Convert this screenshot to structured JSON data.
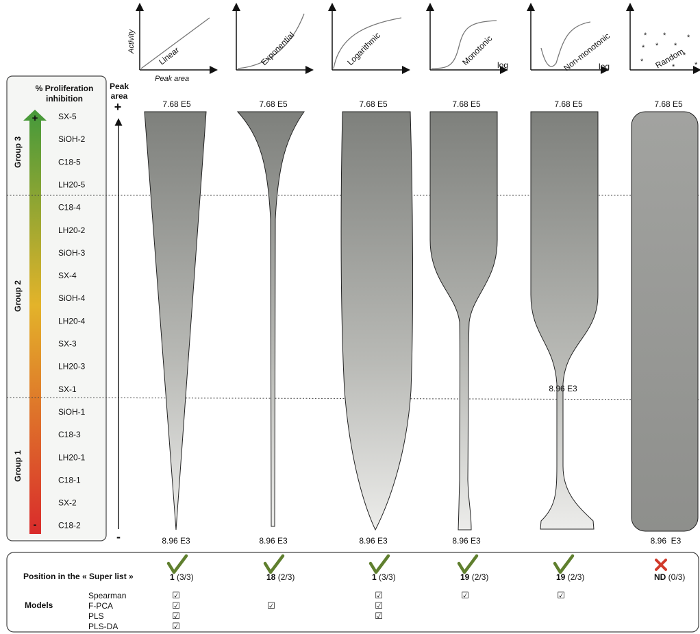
{
  "curve_types": [
    {
      "id": "linear",
      "label": "Linear",
      "x_axis_label": "Peak area",
      "y_axis_label": "Activity",
      "scale_label": ""
    },
    {
      "id": "exponential",
      "label": "Exponential",
      "x_axis_label": "",
      "y_axis_label": "",
      "scale_label": ""
    },
    {
      "id": "logarithmic",
      "label": "Logarithmic",
      "x_axis_label": "",
      "y_axis_label": "",
      "scale_label": ""
    },
    {
      "id": "monotonic",
      "label": "Monotonic",
      "x_axis_label": "",
      "y_axis_label": "",
      "scale_label": "log"
    },
    {
      "id": "non-monotonic",
      "label": "Non-monotonic",
      "x_axis_label": "",
      "y_axis_label": "",
      "scale_label": "log"
    },
    {
      "id": "random",
      "label": "Random",
      "x_axis_label": "",
      "y_axis_label": "",
      "scale_label": ""
    }
  ],
  "left_panel": {
    "title_line1": "% Proliferation",
    "title_line2": "inhibition",
    "plus_sign": "+",
    "minus_sign": "-",
    "gradient_colors": [
      "#4a9a3a",
      "#e3b32a",
      "#d92b2b"
    ],
    "groups": [
      "Group 3",
      "Group 2",
      "Group 1"
    ],
    "samples": [
      "SX-5",
      "SiOH-2",
      "C18-5",
      "LH20-5",
      "C18-4",
      "LH20-2",
      "SiOH-3",
      "SX-4",
      "SiOH-4",
      "LH20-4",
      "SX-3",
      "LH20-3",
      "SX-1",
      "SiOH-1",
      "C18-3",
      "LH20-1",
      "C18-1",
      "SX-2",
      "C18-2"
    ]
  },
  "peak_axis": {
    "title_line1": "Peak",
    "title_line2": "area",
    "plus": "+",
    "minus": "-"
  },
  "shapes": [
    {
      "id": "linear",
      "top_label": "7.68 E5",
      "bottom_label": "8.96 E3",
      "mid_label": ""
    },
    {
      "id": "exponential",
      "top_label": "7.68 E5",
      "bottom_label": "8.96 E3",
      "mid_label": ""
    },
    {
      "id": "logarithmic",
      "top_label": "7.68 E5",
      "bottom_label": "8.96 E3",
      "mid_label": ""
    },
    {
      "id": "monotonic",
      "top_label": "7.68 E5",
      "bottom_label": "8.96 E3",
      "mid_label": ""
    },
    {
      "id": "non-monotonic",
      "top_label": "7.68 E5",
      "bottom_label": "",
      "mid_label": "8.96 E3"
    },
    {
      "id": "random",
      "top_label": "7.68 E5",
      "bottom_label": "8.96  E3",
      "mid_label": ""
    }
  ],
  "bottom_panel": {
    "position_label": "Position in the « Super list »",
    "models_label": "Models",
    "check_mark": "☑",
    "model_names": [
      "Spearman",
      "F-PCA",
      "PLS",
      "PLS-DA"
    ],
    "results": [
      {
        "id": "linear",
        "status": "check",
        "rank": "1",
        "ratio": "(3/3)",
        "models": [
          true,
          true,
          true,
          true
        ]
      },
      {
        "id": "exponential",
        "status": "check",
        "rank": "18",
        "ratio": "(2/3)",
        "models": [
          false,
          true,
          false,
          false
        ]
      },
      {
        "id": "logarithmic",
        "status": "check",
        "rank": "1",
        "ratio": "(3/3)",
        "models": [
          true,
          true,
          true,
          false
        ]
      },
      {
        "id": "monotonic",
        "status": "check",
        "rank": "19",
        "ratio": "(2/3)",
        "models": [
          true,
          false,
          false,
          false
        ]
      },
      {
        "id": "non-monotonic",
        "status": "check",
        "rank": "19",
        "ratio": "(2/3)",
        "models": [
          true,
          false,
          false,
          false
        ]
      },
      {
        "id": "random",
        "status": "cross",
        "rank": "ND",
        "ratio": "(0/3)",
        "models": [
          false,
          false,
          false,
          false
        ]
      }
    ],
    "check_color": "#5f7f2e",
    "cross_color": "#d13a2a"
  }
}
